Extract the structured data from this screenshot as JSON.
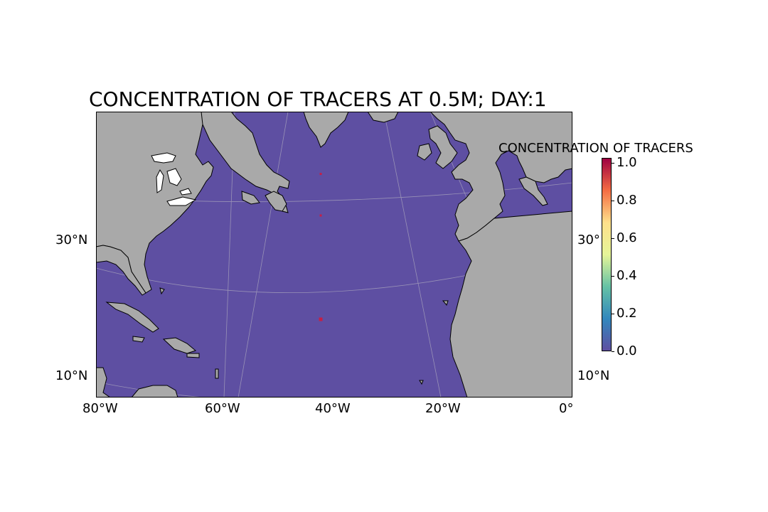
{
  "map": {
    "title": "CONCENTRATION OF TRACERS AT 0.5M; DAY:1",
    "ocean_color": "#5e4fa2",
    "land_color": "#a9a9a9",
    "lake_color": "#ffffff",
    "gridline_color": "#c8c8c8",
    "tracer_color": "#c51f45",
    "lon_labels": [
      "80°W",
      "60°W",
      "40°W",
      "20°W",
      "0°"
    ],
    "lat_labels_left": [
      "30°N",
      "10°N"
    ],
    "lat_labels_right": [
      "30°",
      "10°N"
    ],
    "tracers": [
      {
        "lon": -42.0,
        "lat": 46.0
      },
      {
        "lon": -42.0,
        "lat": 38.0
      },
      {
        "lon": -42.0,
        "lat": 18.0
      }
    ],
    "land_regions": [
      "North America",
      "Greenland",
      "Europe",
      "Africa",
      "Caribbean islands",
      "Iceland"
    ]
  },
  "colorbar": {
    "label": "CONCENTRATION OF TRACERS",
    "colormap": "Spectral_r",
    "ticks": [
      "1.0",
      "0.8",
      "0.6",
      "0.4",
      "0.2",
      "0.0"
    ],
    "colors": [
      "#9e0142",
      "#f46d43",
      "#fee08b",
      "#e6f598",
      "#66c2a5",
      "#3288bd",
      "#5e4fa2"
    ]
  }
}
